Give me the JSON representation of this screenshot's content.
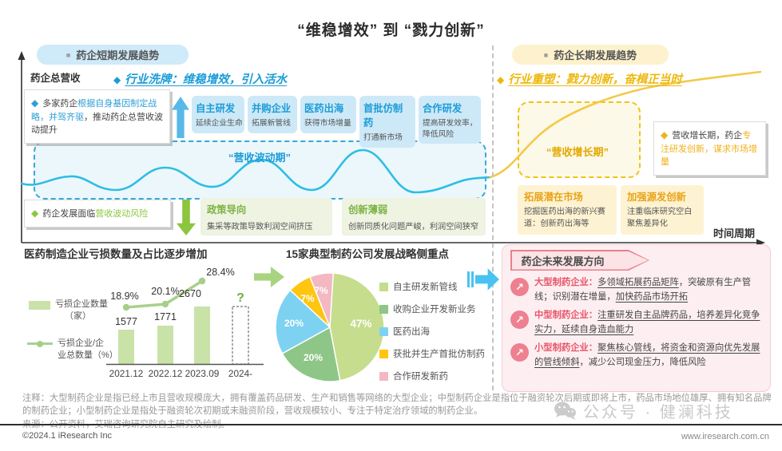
{
  "page_title": "“维稳增效” 到 “戮力创新”",
  "icons": {
    "square": "■",
    "diamond": "◆",
    "arrow_ne": "↗"
  },
  "colors": {
    "blue": "#1b9cd8",
    "cyan_wave": "#2ebde4",
    "light_blue_box": "#cde9f7",
    "green": "#7cb342",
    "bright_green": "#8cc63f",
    "light_green_box": "#eef3e2",
    "gold": "#edb80e",
    "light_yellow_box": "#fdf3d2",
    "yellow_curve": "#f2ca4a",
    "pink_border": "#e8808d",
    "light_pink_panel": "#fdeff1",
    "red_item_title": "#e8566b",
    "bar_fill": "#c9e2a8",
    "line_stroke": "#a9d08e"
  },
  "short_term": {
    "badge": "药企短期发展趋势",
    "y_axis": "药企总营收",
    "heading": "行业洗牌：维稳增效，引入活水",
    "driver": {
      "pre": "多家药企",
      "hl": "根据自身基因制定战略，并驾齐驱",
      "post": "，推动药企总营收波动提升"
    },
    "strategies": [
      {
        "title": "自主研发",
        "desc": "延续企业生命"
      },
      {
        "title": "并购企业",
        "desc": "拓展新管线"
      },
      {
        "title": "医药出海",
        "desc": "获得市场增量"
      },
      {
        "title": "首批仿制药",
        "desc": "打通新市场"
      },
      {
        "title": "合作研发",
        "desc": "提高研发效率，降低风险"
      }
    ],
    "wave_label": "“营收波动期”",
    "risk": {
      "pre": "药企发展面临",
      "hl": "营收波动风险"
    },
    "risk_boxes": [
      {
        "title": "政策导向",
        "desc": "集采等政策导致利润空间挤压"
      },
      {
        "title": "创新薄弱",
        "desc": "创新同质化问题严峻，利润空间狭窄"
      }
    ]
  },
  "long_term": {
    "badge": "药企长期发展趋势",
    "heading": "行业重塑：戮力创新，奋楫正当时",
    "growth_label": "“营收增长期”",
    "note": {
      "pre": "营收增长期，药企",
      "hl": "专注研发创新，谋求市场增量"
    },
    "action_boxes": [
      {
        "title": "拓展潜在市场",
        "desc": "挖掘医药出海的新兴赛道：创新药出海等"
      },
      {
        "title": "加强源发创新",
        "desc": "注重临床研究空白 聚焦差异化"
      }
    ],
    "x_axis": "时间周期"
  },
  "chart_data": [
    {
      "type": "bar",
      "title": "医药制造企业亏损数量及占比逐步增加",
      "categories": [
        "2021.12",
        "2022.12",
        "2023.09",
        "2024-"
      ],
      "series": [
        {
          "name": "亏损企业数量（家）",
          "type": "bar",
          "values": [
            1577,
            1771,
            2670,
            null
          ]
        },
        {
          "name": "亏损企业/企业总数量（%）",
          "type": "line",
          "values": [
            18.9,
            20.1,
            28.4,
            null
          ]
        }
      ],
      "value_labels": [
        "1577",
        "1771",
        "2670",
        "?"
      ],
      "pct_labels": [
        "18.9%",
        "20.1%",
        "28.4%"
      ],
      "legend_lines": [
        [
          "亏损企业数量",
          "（家）"
        ],
        [
          "亏损企业/企",
          "业总数量（%）"
        ]
      ],
      "ylim": [
        0,
        2670
      ]
    },
    {
      "type": "pie",
      "title": "15家典型制药公司发展战略侧重点",
      "labels": [
        "自主研发新管线",
        "收购企业开发新业务",
        "医药出海",
        "获批并生产首批仿制药",
        "合作研发新药"
      ],
      "values": [
        47,
        20,
        20,
        7,
        7
      ],
      "slice_labels": [
        "47%",
        "20%",
        "20%",
        "7%",
        "7%"
      ],
      "colors": [
        "#c6dd8d",
        "#8ec687",
        "#7dd2f2",
        "#ffc510",
        "#f3b8c2"
      ]
    }
  ],
  "future": {
    "banner": "药企未来发展方向",
    "items": [
      {
        "title": "大型制药企业：",
        "p1": "多领域拓展药品矩阵",
        "p2": "，突破原有生产管线；识别潜在增量，",
        "p3": "加快药品市场开拓"
      },
      {
        "title": "中型制药企业：",
        "p1": "注重研发自主品牌药品，培养差异化竞争实力，延续自身造血能力",
        "p2": "",
        "p3": ""
      },
      {
        "title": "小型制药企业：",
        "p1": "聚焦核心管线，将资金和资源向优先发展的管线倾斜",
        "p2": "，减少公司现金压力，降低风险",
        "p3": ""
      }
    ]
  },
  "footer": {
    "note": "注释：大型制药企业是指已经上市且营收规模庞大，拥有覆盖药品研发、生产和销售等网络的大型企业；中型制药企业是指位于融资轮次后期或即将上市，药品市场地位雄厚、拥有知名品牌的制药企业；小型制药企业是指处于融资轮次初期或未融资阶段，营收规模较小、专注于特定治疗领域的制药企业。",
    "source": "来源：公开资料，艾瑞咨询研究院自主研究及绘制。",
    "copyright": "©2024.1 iResearch Inc",
    "website": "www.iresearch.com.cn",
    "watermark": "公众号 · 健澜科技"
  }
}
